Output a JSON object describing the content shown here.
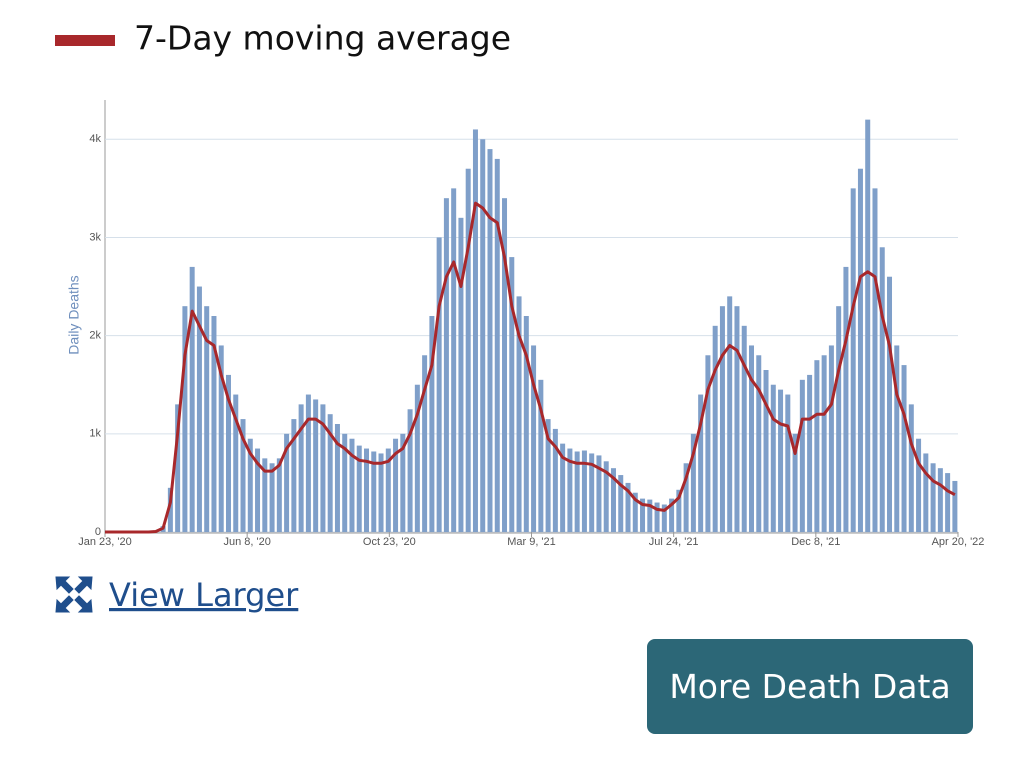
{
  "chart_data": {
    "type": "bar-line",
    "ylabel": "Daily Deaths",
    "x": [
      0,
      7,
      14,
      21,
      28,
      35,
      42,
      49,
      56,
      63,
      70,
      77,
      84,
      91,
      98,
      105,
      112,
      119,
      126,
      133,
      140,
      147,
      154,
      161,
      168,
      175,
      182,
      189,
      196,
      203,
      210,
      217,
      224,
      231,
      238,
      245,
      252,
      259,
      266,
      273,
      280,
      287,
      294,
      301,
      308,
      315,
      322,
      329,
      336,
      343,
      350,
      357,
      364,
      371,
      378,
      385,
      392,
      399,
      406,
      413,
      420,
      427,
      434,
      441,
      448,
      455,
      462,
      469,
      476,
      483,
      490,
      497,
      504,
      511,
      518,
      525,
      532,
      539,
      546,
      553,
      560,
      567,
      574,
      581,
      588,
      595,
      602,
      609,
      616,
      623,
      630,
      637,
      644,
      651,
      658,
      665,
      672,
      679,
      686,
      693,
      700,
      707,
      714,
      721,
      728,
      735,
      742,
      749,
      756,
      763,
      770,
      777,
      784,
      791,
      798,
      805,
      812,
      819
    ],
    "series": [
      {
        "color": "#7f9fc9",
        "values": [
          0,
          0,
          0,
          0,
          0,
          0,
          0,
          10,
          60,
          450,
          1300,
          2300,
          2700,
          2500,
          2300,
          2200,
          1900,
          1600,
          1400,
          1150,
          950,
          850,
          750,
          700,
          750,
          1000,
          1150,
          1300,
          1400,
          1350,
          1300,
          1200,
          1100,
          1000,
          950,
          880,
          850,
          820,
          800,
          850,
          950,
          1000,
          1250,
          1500,
          1800,
          2200,
          3000,
          3400,
          3500,
          3200,
          3700,
          4100,
          4000,
          3900,
          3800,
          3400,
          2800,
          2400,
          2200,
          1900,
          1550,
          1150,
          1050,
          900,
          850,
          820,
          830,
          800,
          780,
          720,
          650,
          580,
          500,
          400,
          340,
          330,
          300,
          280,
          340,
          430,
          700,
          1000,
          1400,
          1800,
          2100,
          2300,
          2400,
          2300,
          2100,
          1900,
          1800,
          1650,
          1500,
          1450,
          1400,
          1000,
          1550,
          1600,
          1750,
          1800,
          1900,
          2300,
          2700,
          3500,
          3700,
          4200,
          3500,
          2900,
          2600,
          1900,
          1700,
          1300,
          950,
          800,
          700,
          650,
          600,
          520
        ]
      },
      {
        "name": "7-Day moving average",
        "color": "#a8282b",
        "values": [
          0,
          0,
          0,
          0,
          0,
          0,
          0,
          5,
          40,
          300,
          1000,
          1800,
          2250,
          2100,
          1950,
          1900,
          1600,
          1350,
          1150,
          950,
          800,
          700,
          620,
          620,
          680,
          850,
          950,
          1050,
          1150,
          1150,
          1100,
          1000,
          900,
          850,
          780,
          730,
          720,
          700,
          700,
          720,
          800,
          850,
          1000,
          1200,
          1450,
          1700,
          2300,
          2600,
          2750,
          2500,
          2900,
          3350,
          3300,
          3200,
          3150,
          2800,
          2300,
          2000,
          1800,
          1500,
          1250,
          950,
          870,
          760,
          720,
          700,
          700,
          690,
          650,
          610,
          550,
          480,
          420,
          330,
          280,
          270,
          230,
          220,
          280,
          350,
          550,
          800,
          1100,
          1450,
          1650,
          1800,
          1900,
          1850,
          1700,
          1550,
          1450,
          1300,
          1150,
          1100,
          1080,
          800,
          1150,
          1150,
          1200,
          1200,
          1300,
          1650,
          1950,
          2300,
          2600,
          2650,
          2600,
          2200,
          1900,
          1400,
          1200,
          900,
          700,
          600,
          520,
          480,
          420,
          380
        ]
      }
    ],
    "xlim": [
      0,
      822
    ],
    "xticks": [
      {
        "value": 0,
        "label": "Jan 23, '20"
      },
      {
        "value": 137,
        "label": "Jun 8, '20"
      },
      {
        "value": 274,
        "label": "Oct 23, '20"
      },
      {
        "value": 411,
        "label": "Mar 9, '21"
      },
      {
        "value": 548,
        "label": "Jul 24, '21"
      },
      {
        "value": 685,
        "label": "Dec 8, '21"
      },
      {
        "value": 822,
        "label": "Apr 20, '22"
      }
    ],
    "ylim": [
      0,
      4400
    ],
    "yticks": [
      0,
      {
        "value": 1000,
        "label": "1k"
      },
      {
        "value": 2000,
        "label": "2k"
      },
      {
        "value": 3000,
        "label": "3k"
      },
      {
        "value": 4000,
        "label": "4k"
      }
    ],
    "grid": true
  },
  "link": "View Larger",
  "button": "More Death Data"
}
